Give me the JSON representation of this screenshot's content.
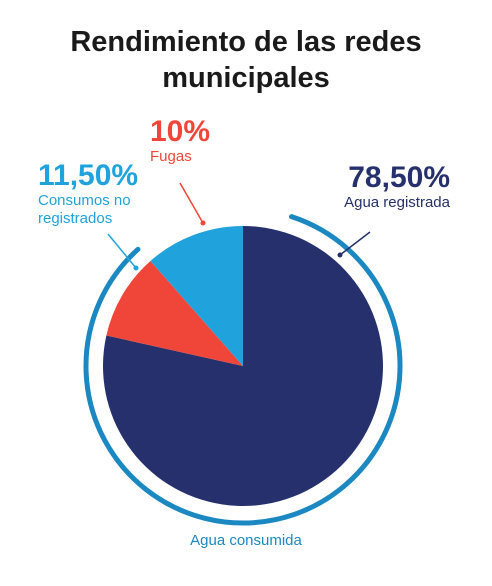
{
  "colors": {
    "agua_registrada": "#25306d",
    "fugas": "#ef4639",
    "consumos_no_registrados": "#20a3dc",
    "ring": "#1b88c2",
    "title": "#1a1a1a"
  },
  "chart_data": {
    "type": "pie",
    "title": "Rendimiento de las redes municipales",
    "outer_arc_label": "Agua consumida",
    "slices": [
      {
        "name": "Agua registrada",
        "value": 78.5,
        "label": "78,50%",
        "color": "#25306d"
      },
      {
        "name": "Fugas",
        "value": 10,
        "label": "10%",
        "color": "#ef4639"
      },
      {
        "name": "Consumos no registrados",
        "value": 11.5,
        "label": "11,50%",
        "color": "#20a3dc"
      }
    ]
  }
}
